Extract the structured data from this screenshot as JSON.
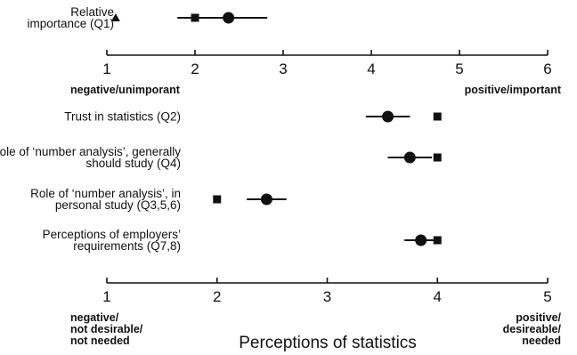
{
  "chart_data": [
    {
      "type": "scatter",
      "rows": [
        {
          "label_lines": [
            "Relative",
            "importance (Q1)"
          ],
          "mean": 2.38,
          "ci": [
            1.8,
            2.82
          ],
          "square": 2.0,
          "triangle": 1.1
        }
      ],
      "xlim": [
        1,
        6
      ],
      "ticks": [
        1,
        2,
        3,
        4,
        5,
        6
      ],
      "left_anchor": [
        "negative/unimporant"
      ],
      "right_anchor": [
        "positive/important"
      ]
    },
    {
      "type": "scatter",
      "rows": [
        {
          "label_lines": [
            "Trust in statistics (Q2)"
          ],
          "mean": 3.55,
          "ci": [
            3.35,
            3.75
          ],
          "square": 4.0
        },
        {
          "label_lines": [
            "Role of ‘number analysis’, generally",
            "should study (Q4)"
          ],
          "mean": 3.75,
          "ci": [
            3.55,
            3.95
          ],
          "square": 4.0
        },
        {
          "label_lines": [
            "Role of ‘number analysis’, in",
            "personal study (Q3,5,6)"
          ],
          "mean": 2.45,
          "ci": [
            2.27,
            2.63
          ],
          "square": 2.0
        },
        {
          "label_lines": [
            "Perceptions of employers’",
            "requirements (Q7,8)"
          ],
          "mean": 3.85,
          "ci": [
            3.7,
            4.0
          ],
          "square": 4.0
        }
      ],
      "xlim": [
        1,
        5
      ],
      "ticks": [
        1,
        2,
        3,
        4,
        5
      ],
      "left_anchor": [
        "negative/",
        "not desirable/",
        "not needed"
      ],
      "right_anchor": [
        "positive/",
        "desireable/",
        "needed"
      ],
      "xlabel": "Perceptions of statistics"
    }
  ]
}
